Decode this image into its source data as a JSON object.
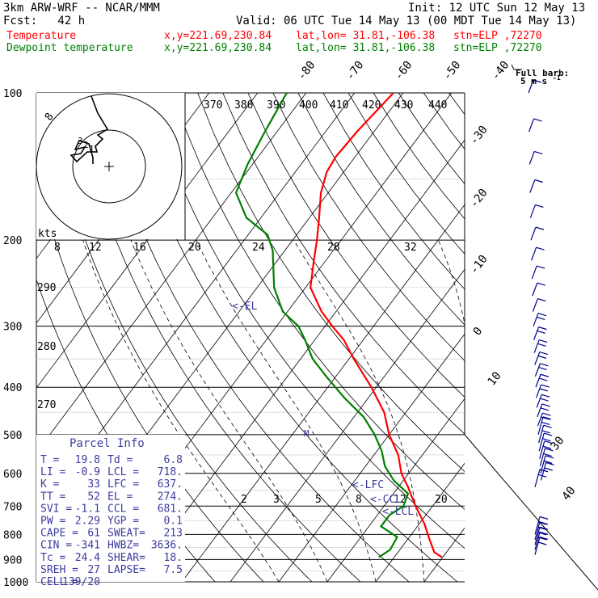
{
  "header": {
    "model": "3km ARW-WRF -- NCAR/MMM",
    "init": "Init: 12 UTC Sun 12 May 13",
    "fcst": "Fcst:   42 h",
    "valid": "Valid: 06 UTC Tue 14 May 13 (00 MDT Tue 14 May 13)",
    "temp_label": "Temperature",
    "dew_label": "Dewpoint temperature",
    "xy": "x,y=221.69,230.84",
    "latlon": "lat,lon= 31.81,-106.38",
    "stn": "stn=ELP ,72270"
  },
  "colors": {
    "temperature": "#ff0000",
    "dewpoint": "#008000",
    "parcel": "#3c3ca0",
    "wind": "#00008c",
    "grid": "#000000"
  },
  "windbarb_legend": {
    "title": "Full barb:",
    "value": "5 m s",
    "exp": "-1"
  },
  "parcel": {
    "title": "Parcel Info",
    "rows": [
      [
        "T   =",
        "19.8",
        "Td  =",
        "6.8"
      ],
      [
        "LI  =",
        "-0.9",
        "LCL =",
        "718."
      ],
      [
        "K   =",
        "33",
        "LFC =",
        "637."
      ],
      [
        "TT  =",
        "52",
        "EL  =",
        "274."
      ],
      [
        "SVI =",
        "-1.1",
        "CCL =",
        "681."
      ],
      [
        "PW  =",
        "2.29",
        "YGP =",
        "0.1"
      ],
      [
        "CAPE =",
        "61",
        "SWEAT=",
        "213"
      ],
      [
        "CIN =",
        "-341",
        "HWBZ=",
        "3636."
      ],
      [
        "Tc  =",
        "24.4",
        "SHEAR=",
        "18."
      ],
      [
        "SREH =",
        "27",
        "LAPSE=",
        "7.5"
      ],
      [
        "CELL =",
        "139/20",
        "",
        ""
      ]
    ]
  },
  "levels": {
    "el": "<-EL",
    "lfc": "<-LFC",
    "ccl": "<-CCL",
    "lcl": "<-LCL",
    "arrow": "<-"
  },
  "hodograph": {
    "kts_label": "kts",
    "ring_label": "8",
    "labels": [
      "3",
      "2",
      "1"
    ]
  },
  "chart_data": {
    "type": "line",
    "title": "",
    "xlabel": "",
    "ylabel": "",
    "pressure_ticks": [
      100,
      200,
      300,
      400,
      500,
      600,
      700,
      800,
      900,
      1000
    ],
    "isotherm_labels": [
      "40",
      "30",
      "20",
      "10",
      "0",
      "-10",
      "-20",
      "-30",
      "-40",
      "-50",
      "-60",
      "-70",
      "-80"
    ],
    "theta_labels": [
      "370",
      "380",
      "390",
      "400",
      "410",
      "420",
      "430",
      "440"
    ],
    "dry_adiabat_labels": [
      "290",
      "280",
      "270"
    ],
    "mixing_ratio_labels_upper": [
      "8",
      "12",
      "16",
      "20",
      "24",
      "28",
      "32"
    ],
    "mixing_ratio_labels_lower": [
      "2",
      "3",
      "5",
      "8",
      "12",
      "20"
    ],
    "series": [
      {
        "name": "Temperature",
        "pressure": [
          890,
          870,
          810,
          760,
          700,
          640,
          600,
          550,
          500,
          450,
          400,
          350,
          320,
          300,
          280,
          250,
          220,
          200,
          180,
          160,
          145,
          135,
          120,
          100
        ],
        "temperature": [
          19.8,
          17.5,
          14.0,
          11.0,
          6.5,
          2.0,
          -1.5,
          -5.0,
          -10.0,
          -14.5,
          -21.0,
          -29.0,
          -34.0,
          -38.5,
          -43.0,
          -49.0,
          -52.5,
          -55.0,
          -58.0,
          -61.5,
          -63.5,
          -64.0,
          -63.5,
          -62.0
        ]
      },
      {
        "name": "Dewpoint temperature",
        "pressure": [
          890,
          860,
          810,
          770,
          730,
          700,
          660,
          620,
          580,
          540,
          500,
          460,
          420,
          380,
          350,
          320,
          300,
          280,
          250,
          210,
          195,
          180,
          160,
          140,
          120,
          100
        ],
        "dewpoint": [
          6.8,
          8.0,
          7.5,
          2.5,
          2.5,
          4.0,
          3.0,
          -2.0,
          -6.0,
          -9.0,
          -13.0,
          -18.0,
          -25.0,
          -32.0,
          -37.5,
          -42.0,
          -45.5,
          -51.0,
          -56.5,
          -62.5,
          -66.0,
          -73.0,
          -79.0,
          -81.0,
          -82.5,
          -84.0
        ]
      }
    ],
    "wind_levels_hpa": [
      100,
      120,
      140,
      160,
      180,
      200,
      220,
      240,
      260,
      280,
      300,
      320,
      340,
      360,
      380,
      400,
      420,
      440,
      460,
      480,
      500,
      520,
      540,
      560,
      580,
      600,
      620,
      640,
      800,
      820,
      840,
      860,
      880
    ]
  }
}
